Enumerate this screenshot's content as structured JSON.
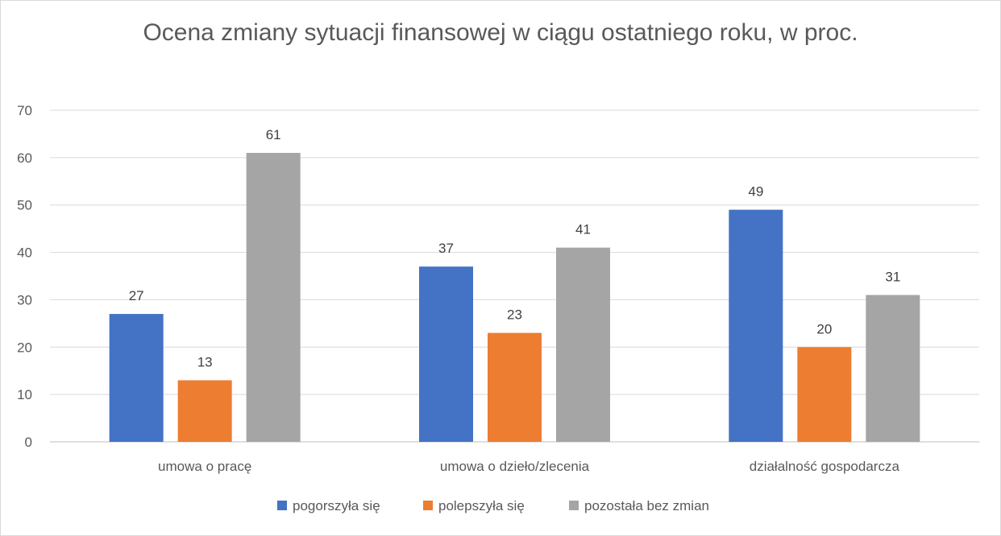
{
  "chart_data": {
    "type": "bar",
    "title": "Ocena zmiany sytuacji finansowej w ciągu ostatniego roku, w proc.",
    "categories": [
      "umowa o pracę",
      "umowa o dzieło/zlecenia",
      "działalność gospodarcza"
    ],
    "series": [
      {
        "name": "pogorszyła się",
        "color": "#4472c4",
        "values": [
          27,
          37,
          49
        ]
      },
      {
        "name": "polepszyła się",
        "color": "#ed7d31",
        "values": [
          13,
          23,
          20
        ]
      },
      {
        "name": "pozostała bez zmian",
        "color": "#a5a5a5",
        "values": [
          61,
          41,
          31
        ]
      }
    ],
    "ylim": [
      0,
      70
    ],
    "yticks": [
      0,
      10,
      20,
      30,
      40,
      50,
      60,
      70
    ],
    "grid": true,
    "legend": "bottom",
    "data_labels": true
  }
}
